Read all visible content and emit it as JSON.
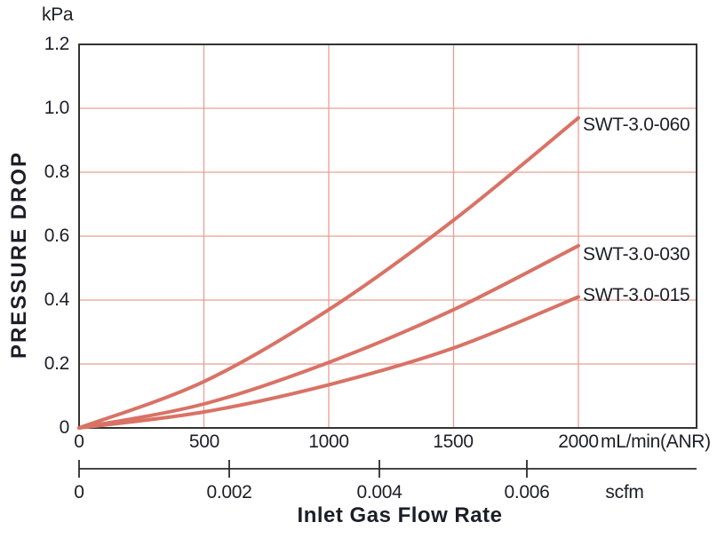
{
  "chart_data": {
    "type": "line",
    "title": "",
    "y_axis": {
      "label": "PRESSURE DROP",
      "unit": "kPa",
      "tick_labels": [
        "1.2",
        "1.0",
        "0.8",
        "0.6",
        "0.4",
        "0.2",
        "0"
      ],
      "tick_values": [
        1.2,
        1.0,
        0.8,
        0.6,
        0.4,
        0.2,
        0
      ],
      "grid_values": [
        1.0,
        0.8,
        0.6,
        0.4,
        0.2
      ],
      "range": [
        0,
        1.2
      ]
    },
    "x_axis": {
      "label": "Inlet Gas Flow Rate",
      "unit": "mL/min(ANR)",
      "tick_labels": [
        "0",
        "500",
        "1000",
        "1500",
        "2000"
      ],
      "tick_values": [
        0,
        500,
        1000,
        1500,
        2000
      ],
      "grid_values": [
        500,
        1000,
        1500,
        2000
      ],
      "range": [
        0,
        2000
      ]
    },
    "secondary_x_axis": {
      "unit": "scfm",
      "tick_labels": [
        "0",
        "0.002",
        "0.004",
        "0.006"
      ],
      "tick_values": [
        0,
        0.002,
        0.004,
        0.006
      ]
    },
    "series": [
      {
        "name": "SWT-3.0-060",
        "x": [
          0,
          500,
          1000,
          1500,
          2000
        ],
        "y": [
          0,
          0.145,
          0.37,
          0.65,
          0.97
        ]
      },
      {
        "name": "SWT-3.0-030",
        "x": [
          0,
          500,
          1000,
          1500,
          2000
        ],
        "y": [
          0,
          0.075,
          0.205,
          0.37,
          0.57
        ]
      },
      {
        "name": "SWT-3.0-015",
        "x": [
          0,
          500,
          1000,
          1500,
          2000
        ],
        "y": [
          0,
          0.05,
          0.135,
          0.25,
          0.41
        ]
      }
    ],
    "grid": true,
    "legend_position": "right-of-curve-end",
    "colors": {
      "curve": "#d97265",
      "grid": "#e7a094",
      "frame": "#333333",
      "secondary_axis": "#2b2b2b",
      "text": "#1e1e28",
      "background": "#ffffff"
    }
  }
}
